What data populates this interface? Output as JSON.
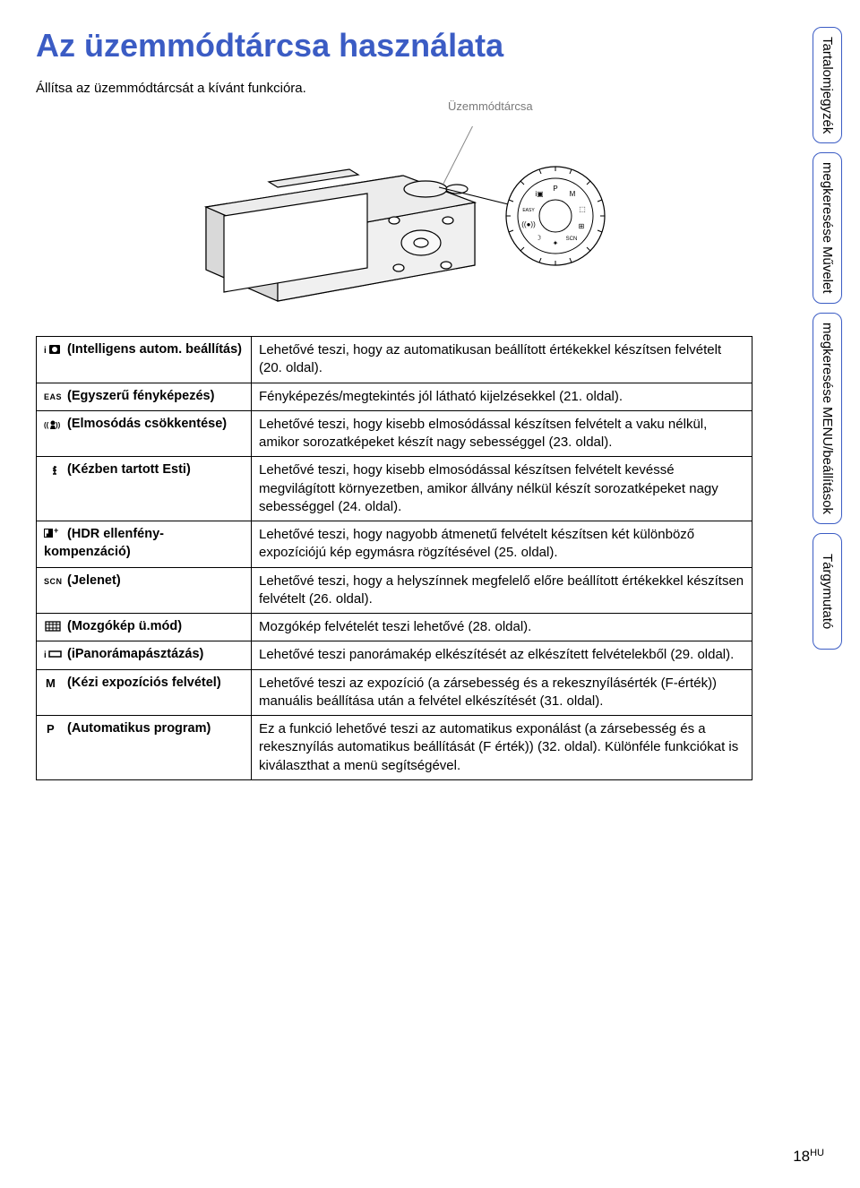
{
  "page": {
    "title": "Az üzemmódtárcsa használata",
    "subtitle": "Állítsa az üzemmódtárcsát a kívánt funkcióra.",
    "figure_caption": "Üzemmódtárcsa",
    "page_number": "18",
    "page_suffix": "HU"
  },
  "colors": {
    "heading": "#3b5cc4",
    "tab_border": "#3b5cc4",
    "caption_gray": "#7a7a7a",
    "table_border": "#000000",
    "background": "#ffffff",
    "text": "#000000"
  },
  "typography": {
    "title_size_pt": 27,
    "body_size_pt": 11,
    "table_left_bold": true
  },
  "side_tabs": [
    {
      "lines": [
        "Tartalomjegyzék"
      ]
    },
    {
      "lines": [
        "Művelet",
        "megkeresése"
      ]
    },
    {
      "lines": [
        "MENU/beállítások",
        "megkeresése"
      ]
    },
    {
      "lines": [
        "Tárgymutató"
      ]
    }
  ],
  "modes": [
    {
      "icon": "intelligent-auto",
      "label": " (Intelligens autom. beállítás)",
      "desc": "Lehetővé teszi, hogy az automatikusan beállított értékekkel készítsen felvételt (20. oldal)."
    },
    {
      "icon": "easy",
      "label": " (Egyszerű fényképezés)",
      "desc": "Fényképezés/megtekintés jól látható kijelzésekkel (21. oldal)."
    },
    {
      "icon": "anti-blur",
      "label": " (Elmosódás csökkentése)",
      "desc": "Lehetővé teszi, hogy kisebb elmosódással készítsen felvételt a vaku nélkül, amikor sorozatképeket készít nagy sebességgel (23. oldal)."
    },
    {
      "icon": "handheld-twilight",
      "label": " (Kézben tartott Esti)",
      "desc": "Lehetővé teszi, hogy kisebb elmosódással készítsen felvételt kevéssé megvilágított környezetben, amikor állvány nélkül készít sorozatképeket nagy sebességgel (24. oldal)."
    },
    {
      "icon": "hdr",
      "label": " (HDR ellenfény-kompenzáció)",
      "desc": "Lehetővé teszi, hogy nagyobb átmenetű felvételt készítsen két különböző expozíciójú kép egymásra rögzítésével (25. oldal)."
    },
    {
      "icon": "scn",
      "label": " (Jelenet)",
      "desc": "Lehetővé teszi, hogy a helyszínnek megfelelő előre beállított értékekkel készítsen felvételt (26. oldal)."
    },
    {
      "icon": "movie",
      "label": " (Mozgókép ü.mód)",
      "desc": "Mozgókép felvételét teszi lehetővé (28. oldal)."
    },
    {
      "icon": "panorama",
      "label": " (iPanorámapásztázás)",
      "desc": "Lehetővé teszi panorámakép elkészítését az elkészített felvételekből (29. oldal)."
    },
    {
      "icon": "manual",
      "label": " (Kézi expozíciós felvétel)",
      "desc": "Lehetővé teszi az expozíció (a zársebesség és a rekesznyílásérték (F-érték)) manuális beállítása után a felvétel elkészítését (31. oldal)."
    },
    {
      "icon": "program",
      "label": " (Automatikus program)",
      "desc": "Ez a funkció lehetővé teszi az automatikus exponálást (a zársebesség és a rekesznyílás automatikus beállítását (F érték)) (32. oldal). Különféle funkciókat is kiválaszthat a menü segítségével."
    }
  ]
}
